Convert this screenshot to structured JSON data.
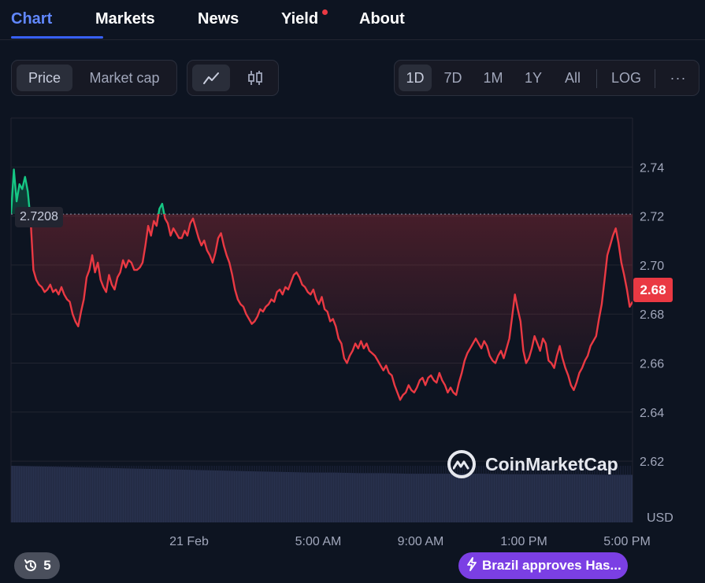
{
  "nav": {
    "tabs": [
      {
        "label": "Chart",
        "active": true
      },
      {
        "label": "Markets"
      },
      {
        "label": "News"
      },
      {
        "label": "Yield",
        "dot": true
      },
      {
        "label": "About"
      }
    ]
  },
  "toolbar": {
    "type_toggle": {
      "price": "Price",
      "market_cap": "Market cap",
      "selected": "Price"
    },
    "chart_style": {
      "selected": "line-chart-icon",
      "options": [
        "line-chart-icon",
        "candlestick-icon"
      ]
    },
    "ranges": [
      "1D",
      "7D",
      "1M",
      "1Y",
      "All"
    ],
    "selected_range": "1D",
    "log_label": "LOG",
    "more_label": "···"
  },
  "chart_data": {
    "type": "line",
    "x_tick_labels": [
      "21 Feb",
      "5:00 AM",
      "9:00 AM",
      "1:00 PM",
      "5:00 PM"
    ],
    "y_ticks": [
      2.62,
      2.64,
      2.66,
      2.68,
      2.7,
      2.72,
      2.74
    ],
    "y_tick_labels": [
      "2.62",
      "2.64",
      "2.66",
      "2.68",
      "2.70",
      "2.72",
      "2.74"
    ],
    "ylim": [
      2.6,
      2.76
    ],
    "y_unit_label": "USD",
    "reference_price": 2.7208,
    "reference_label": "2.7208",
    "current_price_label": "2.68",
    "current_price": 2.6849,
    "colors": {
      "up": "#16c784",
      "down": "#ea3943"
    },
    "series": [
      {
        "values": [
          2.721,
          2.739,
          2.726,
          2.733,
          2.731,
          2.736,
          2.73,
          2.718,
          2.698,
          2.694,
          2.692,
          2.691,
          2.689,
          2.69,
          2.692,
          2.689,
          2.69,
          2.688,
          2.691,
          2.688,
          2.686,
          2.685,
          2.68,
          2.677,
          2.675,
          2.681,
          2.686,
          2.695,
          2.698,
          2.704,
          2.697,
          2.701,
          2.694,
          2.691,
          2.689,
          2.696,
          2.692,
          2.69,
          2.695,
          2.697,
          2.702,
          2.699,
          2.702,
          2.701,
          2.698,
          2.698,
          2.699,
          2.701,
          2.708,
          2.716,
          2.712,
          2.718,
          2.716,
          2.723,
          2.725,
          2.719,
          2.717,
          2.712,
          2.715,
          2.713,
          2.711,
          2.711,
          2.714,
          2.712,
          2.717,
          2.719,
          2.715,
          2.711,
          2.708,
          2.71,
          2.706,
          2.704,
          2.701,
          2.705,
          2.711,
          2.713,
          2.708,
          2.704,
          2.701,
          2.696,
          2.69,
          2.686,
          2.684,
          2.683,
          2.68,
          2.678,
          2.676,
          2.677,
          2.679,
          2.682,
          2.681,
          2.683,
          2.684,
          2.686,
          2.685,
          2.689,
          2.69,
          2.688,
          2.691,
          2.69,
          2.693,
          2.696,
          2.697,
          2.695,
          2.692,
          2.691,
          2.689,
          2.688,
          2.69,
          2.686,
          2.684,
          2.687,
          2.682,
          2.681,
          2.677,
          2.678,
          2.675,
          2.67,
          2.668,
          2.662,
          2.66,
          2.663,
          2.665,
          2.668,
          2.666,
          2.669,
          2.666,
          2.668,
          2.665,
          2.664,
          2.663,
          2.661,
          2.659,
          2.657,
          2.659,
          2.656,
          2.655,
          2.651,
          2.648,
          2.645,
          2.647,
          2.648,
          2.651,
          2.649,
          2.648,
          2.65,
          2.653,
          2.654,
          2.651,
          2.654,
          2.655,
          2.653,
          2.652,
          2.656,
          2.653,
          2.651,
          2.648,
          2.65,
          2.648,
          2.647,
          2.652,
          2.656,
          2.661,
          2.664,
          2.666,
          2.668,
          2.67,
          2.668,
          2.666,
          2.669,
          2.667,
          2.663,
          2.661,
          2.66,
          2.663,
          2.665,
          2.662,
          2.666,
          2.67,
          2.679,
          2.688,
          2.682,
          2.677,
          2.665,
          2.66,
          2.662,
          2.666,
          2.671,
          2.668,
          2.665,
          2.67,
          2.668,
          2.661,
          2.66,
          2.658,
          2.663,
          2.667,
          2.662,
          2.658,
          2.655,
          2.651,
          2.649,
          2.652,
          2.656,
          2.658,
          2.661,
          2.663,
          2.667,
          2.669,
          2.671,
          2.678,
          2.684,
          2.694,
          2.704,
          2.708,
          2.712,
          2.715,
          2.709,
          2.701,
          2.696,
          2.69,
          2.683,
          2.685
        ]
      }
    ],
    "volume": {
      "label": "volume",
      "values": [
        1.0,
        0.99,
        0.98,
        0.97,
        0.96,
        0.95,
        0.94,
        0.93,
        0.92,
        0.91,
        0.9,
        0.89,
        0.88,
        0.88,
        0.87,
        0.87,
        0.86,
        0.86,
        0.86,
        0.86,
        0.85,
        0.85,
        0.85,
        0.85,
        0.84,
        0.84
      ]
    }
  },
  "watermark": {
    "brand": "CoinMarketCap"
  },
  "footer": {
    "history_count": "5",
    "news_pill_label": "Brazil approves Has..."
  }
}
